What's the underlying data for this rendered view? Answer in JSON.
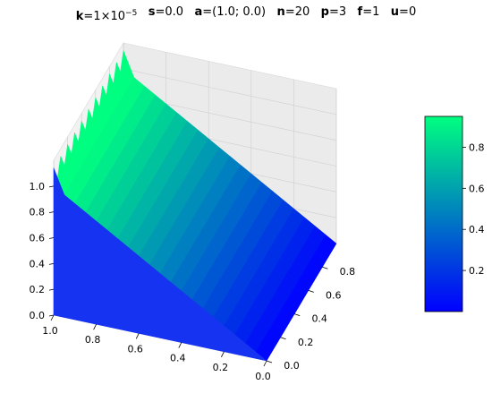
{
  "title_parts": [
    {
      "label": "k",
      "value": "=1×10",
      "sup": "−5"
    },
    {
      "label": "s",
      "value": "=0.0"
    },
    {
      "label": "a",
      "value": "=(1.0; 0.0)"
    },
    {
      "label": "n",
      "value": "=20"
    },
    {
      "label": "p",
      "value": "=3"
    },
    {
      "label": "f",
      "value": "=1"
    },
    {
      "label": "u",
      "value": "=0"
    }
  ],
  "chart_data": {
    "type": "surface3d",
    "title": "k=1×10⁻⁵   s=0.0   a=(1.0; 0.0)   n=20   p=3   f=1   u=0",
    "colormap": "winter",
    "colormap_colors": [
      "#0000ff",
      "#00ff80"
    ],
    "surface_description_values": {
      "grid_n": 20,
      "z_left_edge": 0.0,
      "z_right_edge": 1.0,
      "z_peak_max": 1.18,
      "profile": "z rises approximately linearly from 0 to 1 along the first horizontal axis, with oscillating spikes near the right boundary; constant along the second axis"
    },
    "axes": {
      "x": {
        "ticks": [
          "0.0",
          "0.2",
          "0.4",
          "0.6",
          "0.8",
          "1.0"
        ],
        "range": [
          0,
          1
        ]
      },
      "y": {
        "ticks": [
          "0.0",
          "0.2",
          "0.4",
          "0.6",
          "0.8"
        ],
        "range": [
          0,
          1
        ]
      },
      "z": {
        "ticks": [
          "0.0",
          "0.2",
          "0.4",
          "0.6",
          "0.8",
          "1.0"
        ],
        "range": [
          0,
          1.2
        ]
      }
    },
    "colorbar": {
      "ticks": [
        "0.2",
        "0.4",
        "0.6",
        "0.8"
      ],
      "range": [
        0.0,
        0.95
      ]
    },
    "grid": true
  }
}
